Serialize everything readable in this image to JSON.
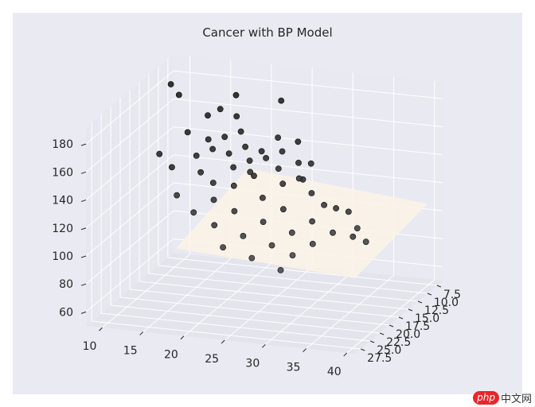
{
  "chart_data": {
    "type": "scatter3d",
    "title": "Cancer with BP Model",
    "x_axis": {
      "label": "",
      "ticks": [
        "10",
        "15",
        "20",
        "25",
        "30",
        "35",
        "40"
      ],
      "lim": [
        8,
        41
      ]
    },
    "y_axis": {
      "label": "",
      "ticks": [
        "7.5",
        "10.0",
        "12.5",
        "15.0",
        "17.5",
        "20.0",
        "22.5",
        "25.0",
        "27.5"
      ],
      "lim": [
        6,
        29
      ]
    },
    "z_axis": {
      "label": "",
      "ticks": [
        "60",
        "80",
        "100",
        "120",
        "140",
        "160",
        "180"
      ],
      "lim": [
        50,
        192
      ]
    },
    "grid": true,
    "surface": {
      "description": "light near-flat surface plane",
      "color": "#fbf3e6",
      "z": 118
    },
    "points": [
      {
        "x": 10,
        "y": 11,
        "z": 183
      },
      {
        "x": 11,
        "y": 11,
        "z": 176
      },
      {
        "x": 18,
        "y": 11,
        "z": 180
      },
      {
        "x": 24,
        "y": 12,
        "z": 182
      },
      {
        "x": 17,
        "y": 13,
        "z": 174
      },
      {
        "x": 19,
        "y": 13,
        "z": 170
      },
      {
        "x": 15,
        "y": 12,
        "z": 166
      },
      {
        "x": 20,
        "y": 14,
        "z": 162
      },
      {
        "x": 25,
        "y": 15,
        "z": 163
      },
      {
        "x": 27,
        "y": 14,
        "z": 159
      },
      {
        "x": 13,
        "y": 13,
        "z": 155
      },
      {
        "x": 16,
        "y": 14,
        "z": 154
      },
      {
        "x": 18,
        "y": 14,
        "z": 157
      },
      {
        "x": 21,
        "y": 15,
        "z": 154
      },
      {
        "x": 23,
        "y": 15,
        "z": 152
      },
      {
        "x": 26,
        "y": 16,
        "z": 156
      },
      {
        "x": 28,
        "y": 16,
        "z": 149
      },
      {
        "x": 30,
        "y": 17,
        "z": 152
      },
      {
        "x": 17,
        "y": 15,
        "z": 150
      },
      {
        "x": 19,
        "y": 15,
        "z": 148
      },
      {
        "x": 22,
        "y": 16,
        "z": 147
      },
      {
        "x": 24,
        "y": 16,
        "z": 150
      },
      {
        "x": 26,
        "y": 17,
        "z": 146
      },
      {
        "x": 29,
        "y": 18,
        "z": 143
      },
      {
        "x": 15,
        "y": 15,
        "z": 144
      },
      {
        "x": 20,
        "y": 16,
        "z": 141
      },
      {
        "x": 23,
        "y": 17,
        "z": 139
      },
      {
        "x": 27,
        "y": 18,
        "z": 138
      },
      {
        "x": 31,
        "y": 19,
        "z": 136
      },
      {
        "x": 33,
        "y": 20,
        "z": 131
      },
      {
        "x": 36,
        "y": 20,
        "z": 128
      },
      {
        "x": 38,
        "y": 22,
        "z": 122
      },
      {
        "x": 40,
        "y": 24,
        "z": 118
      },
      {
        "x": 10,
        "y": 14,
        "z": 140
      },
      {
        "x": 12,
        "y": 15,
        "z": 134
      },
      {
        "x": 16,
        "y": 16,
        "z": 135
      },
      {
        "x": 18,
        "y": 17,
        "z": 131
      },
      {
        "x": 21,
        "y": 18,
        "z": 133
      },
      {
        "x": 25,
        "y": 19,
        "z": 129
      },
      {
        "x": 28,
        "y": 20,
        "z": 125
      },
      {
        "x": 32,
        "y": 21,
        "z": 121
      },
      {
        "x": 35,
        "y": 22,
        "z": 117
      },
      {
        "x": 19,
        "y": 19,
        "z": 124
      },
      {
        "x": 22,
        "y": 20,
        "z": 120
      },
      {
        "x": 26,
        "y": 21,
        "z": 117
      },
      {
        "x": 30,
        "y": 22,
        "z": 114
      },
      {
        "x": 33,
        "y": 23,
        "z": 110
      },
      {
        "x": 20,
        "y": 21,
        "z": 111
      },
      {
        "x": 24,
        "y": 22,
        "z": 108
      },
      {
        "x": 28,
        "y": 23,
        "z": 106
      },
      {
        "x": 31,
        "y": 24,
        "z": 103
      },
      {
        "x": 17,
        "y": 20,
        "z": 116
      },
      {
        "x": 14,
        "y": 18,
        "z": 122
      },
      {
        "x": 23,
        "y": 18,
        "z": 144
      },
      {
        "x": 29,
        "y": 17,
        "z": 140
      },
      {
        "x": 34,
        "y": 19,
        "z": 127
      },
      {
        "x": 37,
        "y": 21,
        "z": 113
      },
      {
        "x": 26,
        "y": 24,
        "z": 98
      },
      {
        "x": 30,
        "y": 25,
        "z": 94
      },
      {
        "x": 22,
        "y": 23,
        "z": 101
      }
    ]
  },
  "watermark": {
    "logo": "php",
    "text": "中文网"
  }
}
